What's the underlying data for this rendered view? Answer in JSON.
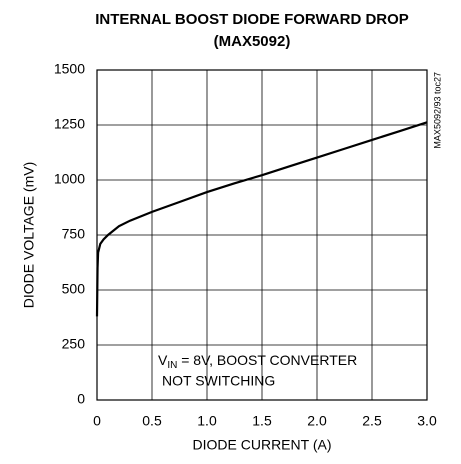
{
  "chart_data": {
    "type": "line",
    "title": [
      "INTERNAL BOOST DIODE FORWARD DROP",
      "(MAX5092)"
    ],
    "xlabel": "DIODE CURRENT (A)",
    "ylabel": "DIODE VOLTAGE (mV)",
    "side_label": "MAX5092/93 toc27",
    "annotation": [
      [
        "V",
        "IN",
        " = 8V, BOOST CONVERTER"
      ],
      [
        "NOT SWITCHING"
      ]
    ],
    "x": [
      0,
      0.005,
      0.01,
      0.03,
      0.06,
      0.1,
      0.2,
      0.3,
      0.5,
      0.75,
      1.0,
      1.25,
      1.5,
      1.75,
      2.0,
      2.25,
      2.5,
      2.75,
      3.0
    ],
    "values": [
      380,
      600,
      670,
      710,
      730,
      750,
      790,
      815,
      855,
      900,
      945,
      985,
      1022,
      1062,
      1102,
      1142,
      1182,
      1222,
      1262
    ],
    "color": "#000000",
    "xlim": [
      0,
      3
    ],
    "ylim": [
      0,
      1500
    ],
    "xticks": [
      0,
      0.5,
      {
        "value": 1,
        "label": "1.0"
      },
      1.5,
      {
        "value": 2,
        "label": "2.0"
      },
      2.5,
      {
        "value": 3,
        "label": "3.0"
      }
    ],
    "yticks": [
      0,
      250,
      500,
      750,
      1000,
      1250,
      1500
    ],
    "grid": true
  }
}
